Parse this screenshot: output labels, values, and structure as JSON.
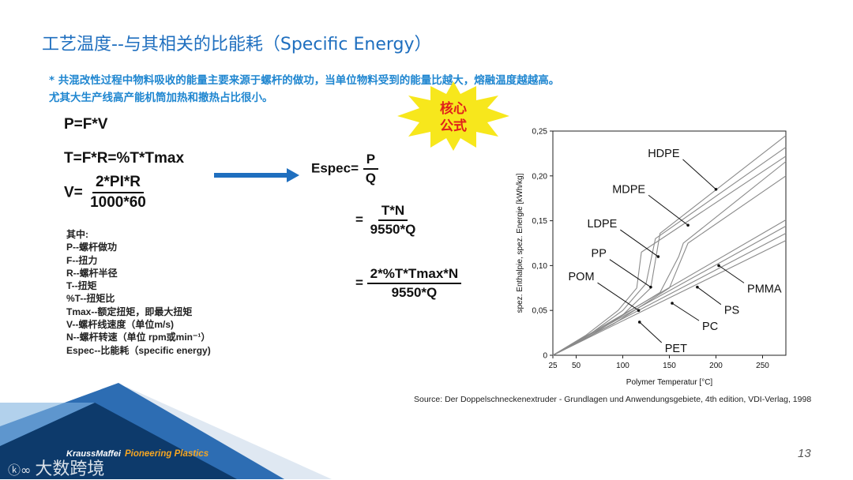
{
  "title": "工艺温度--与其相关的比能耗（Specific Energy）",
  "notes": [
    "* 共混改性过程中物料吸收的能量主要来源于螺杆的做功，当单位物料受到的能量比越大，熔融温度越越高。",
    "尤其大生产线高产能机筒加热和撤热占比很小。"
  ],
  "starburst_text": [
    "核心",
    "公式"
  ],
  "formulas": {
    "p": "P=F*V",
    "t": "T=F*R=%T*Tmax",
    "v_lhs": "V=",
    "v_num": "2*PI*R",
    "v_den": "1000*60",
    "espec_lhs": "Espec=",
    "espec_num": "P",
    "espec_den": "Q",
    "eq": "=",
    "step2_num": "T*N",
    "step2_den": "9550*Q",
    "step3_num": "2*%T*Tmax*N",
    "step3_den": "9550*Q"
  },
  "legend_list": [
    "其中:",
    "P--螺杆做功",
    "F--扭力",
    "R--螺杆半径",
    "T--扭矩",
    "%T--扭矩比",
    "Tmax--额定扭矩，即最大扭矩",
    "V--螺杆线速度（单位m/s)",
    "N--螺杆转速（单位 rpm或min⁻¹）",
    "Espec--比能耗（specific energy)"
  ],
  "source": "Source: Der Doppelschneckenextruder - Grundlagen und Anwendungsgebiete, 4th edition, VDI-Verlag, 1998",
  "page_number": "13",
  "brand": {
    "company": "KraussMaffei",
    "slogan": "Pioneering Plastics"
  },
  "watermark": "大数跨境",
  "colors": {
    "title": "#1f6fbf",
    "note": "#1f86d0",
    "arrow": "#1f6fbf",
    "starburst": "#f7e71c",
    "starburst_text": "#e0201b",
    "brand_dark": "#0d3a6b",
    "brand_slogan": "#f5a623"
  },
  "chart_data": {
    "type": "line",
    "title": "",
    "xlabel": "Polymer Temperatur [°C]",
    "ylabel": "spez. Enthalpie, spez. Energie [kWh/kg]",
    "xlim": [
      25,
      275
    ],
    "ylim": [
      0,
      0.25
    ],
    "x_ticks": [
      "25",
      "50",
      "100",
      "150",
      "200",
      "250"
    ],
    "y_ticks": [
      "0",
      "0,05",
      "0,10",
      "0,15",
      "0,20",
      "0,25"
    ],
    "grid": false,
    "series": [
      {
        "name": "HDPE",
        "x": [
          25,
          60,
          100,
          130,
          140,
          275
        ],
        "y": [
          0,
          0.018,
          0.045,
          0.075,
          0.136,
          0.245
        ]
      },
      {
        "name": "MDPE",
        "x": [
          25,
          60,
          100,
          125,
          135,
          275
        ],
        "y": [
          0,
          0.02,
          0.05,
          0.08,
          0.13,
          0.232
        ]
      },
      {
        "name": "LDPE",
        "x": [
          25,
          60,
          95,
          115,
          120,
          275
        ],
        "y": [
          0,
          0.022,
          0.05,
          0.075,
          0.115,
          0.222
        ]
      },
      {
        "name": "PP",
        "x": [
          25,
          80,
          140,
          160,
          165,
          275
        ],
        "y": [
          0,
          0.032,
          0.07,
          0.11,
          0.125,
          0.216
        ]
      },
      {
        "name": "POM",
        "x": [
          25,
          90,
          150,
          170,
          275
        ],
        "y": [
          0,
          0.035,
          0.075,
          0.125,
          0.2
        ]
      },
      {
        "name": "PMMA",
        "x": [
          25,
          275
        ],
        "y": [
          0,
          0.151
        ]
      },
      {
        "name": "PS",
        "x": [
          25,
          275
        ],
        "y": [
          0,
          0.144
        ]
      },
      {
        "name": "PC",
        "x": [
          25,
          275
        ],
        "y": [
          0,
          0.136
        ]
      },
      {
        "name": "PET",
        "x": [
          25,
          275
        ],
        "y": [
          0,
          0.128
        ]
      }
    ],
    "annotations": [
      {
        "text": "HDPE",
        "x": 200,
        "y": 0.185
      },
      {
        "text": "MDPE",
        "x": 170,
        "y": 0.145
      },
      {
        "text": "LDPE",
        "x": 138,
        "y": 0.11
      },
      {
        "text": "PP",
        "x": 130,
        "y": 0.076
      },
      {
        "text": "POM",
        "x": 117,
        "y": 0.05
      },
      {
        "text": "PMMA",
        "x": 203,
        "y": 0.1
      },
      {
        "text": "PS",
        "x": 180,
        "y": 0.076
      },
      {
        "text": "PC",
        "x": 153,
        "y": 0.058
      },
      {
        "text": "PET",
        "x": 118,
        "y": 0.037
      }
    ]
  }
}
